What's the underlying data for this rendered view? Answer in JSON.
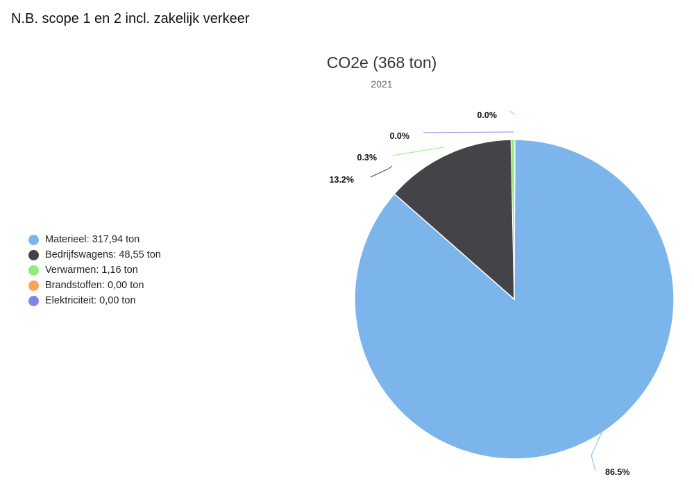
{
  "page": {
    "note": "N.B. scope 1 en 2 incl. zakelijk verkeer"
  },
  "chart_data": {
    "type": "pie",
    "title": "CO2e (368 ton)",
    "subtitle": "2021",
    "legend_position": "left",
    "slices": [
      {
        "name": "Materieel",
        "value": 317.94,
        "legend_label": "Materieel: 317,94 ton",
        "percent_label": "86.5%",
        "color": "#7cb5ec"
      },
      {
        "name": "Bedrijfswagens",
        "value": 48.55,
        "legend_label": "Bedrijfswagens: 48,55 ton",
        "percent_label": "13.2%",
        "color": "#434348"
      },
      {
        "name": "Verwarmen",
        "value": 1.16,
        "legend_label": "Verwarmen: 1,16 ton",
        "percent_label": "0.3%",
        "color": "#90ed7d"
      },
      {
        "name": "Brandstoffen",
        "value": 0.0,
        "legend_label": "Brandstoffen: 0,00 ton",
        "percent_label": "0.0%",
        "color": "#f7a35c"
      },
      {
        "name": "Elektriciteit",
        "value": 0.0,
        "legend_label": "Elektriciteit: 0,00 ton",
        "percent_label": "0.0%",
        "color": "#8085e9"
      }
    ]
  }
}
